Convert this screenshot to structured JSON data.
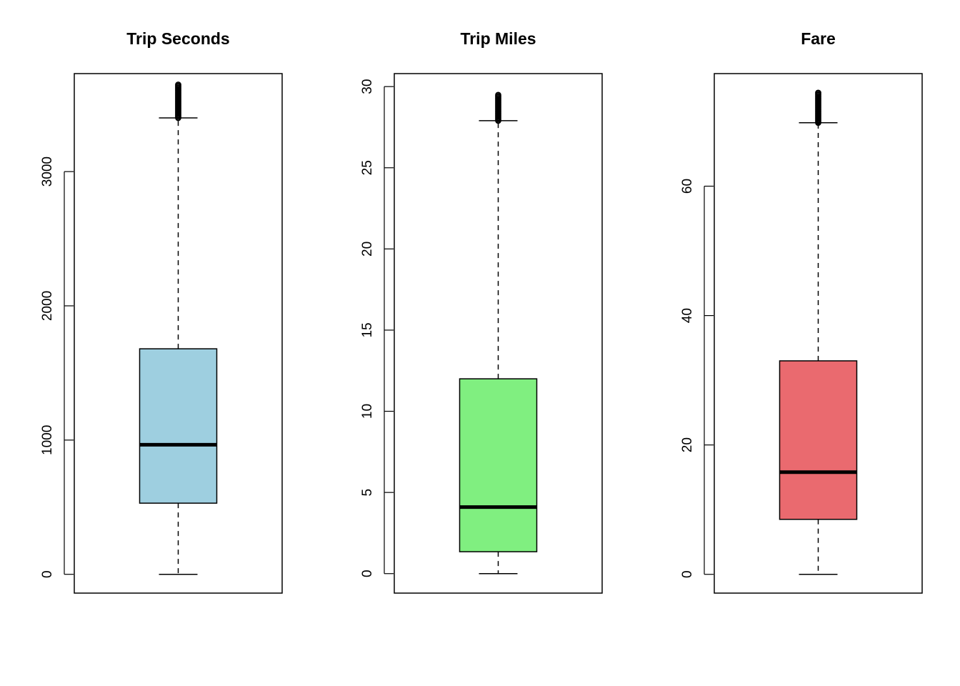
{
  "chart_data": [
    {
      "type": "box",
      "title": "Trip Seconds",
      "fill_color": "#9ecfe0",
      "ylim": [
        -140,
        3730
      ],
      "yticks": [
        0,
        1000,
        2000,
        3000
      ],
      "ytick_labels": [
        "0",
        "1000",
        "2000",
        "3000"
      ],
      "whisker_low": 0,
      "q1": 530,
      "median": 965,
      "q3": 1680,
      "whisker_high": 3400,
      "outliers_from": 3400,
      "outliers_to": 3650
    },
    {
      "type": "box",
      "title": "Trip Miles",
      "fill_color": "#80ef80",
      "ylim": [
        -1.2,
        30.8
      ],
      "yticks": [
        0,
        5,
        10,
        15,
        20,
        25,
        30
      ],
      "ytick_labels": [
        "0",
        "5",
        "10",
        "15",
        "20",
        "25",
        "30"
      ],
      "whisker_low": 0,
      "q1": 1.35,
      "median": 4.1,
      "q3": 12.0,
      "whisker_high": 27.9,
      "outliers_from": 27.9,
      "outliers_to": 29.5
    },
    {
      "type": "box",
      "title": "Fare",
      "fill_color": "#ea6a6f",
      "ylim": [
        -2.9,
        77.4
      ],
      "yticks": [
        0,
        20,
        40,
        60
      ],
      "ytick_labels": [
        "0",
        "20",
        "40",
        "60"
      ],
      "whisker_low": 0,
      "q1": 8.5,
      "median": 15.8,
      "q3": 33.0,
      "whisker_high": 69.8,
      "outliers_from": 69.8,
      "outliers_to": 74.5
    }
  ]
}
